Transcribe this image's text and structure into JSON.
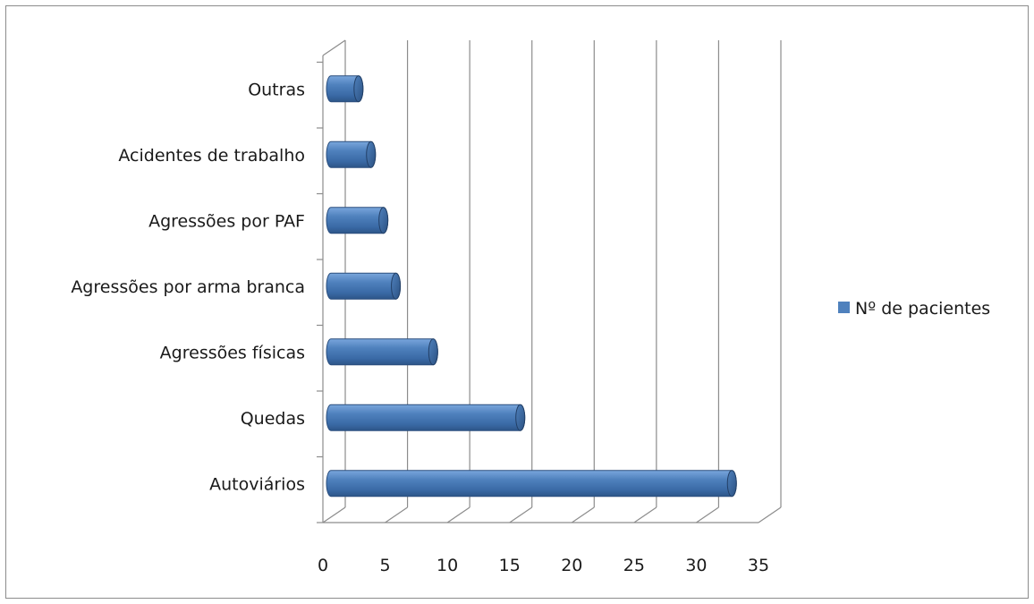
{
  "chart_data": {
    "type": "bar",
    "orientation": "horizontal",
    "style": "3d-cylinder",
    "categories": [
      "Autoviários",
      "Quedas",
      "Agressões físicas",
      "Agressões por arma branca",
      "Agressões por PAF",
      "Acidentes de trabalho",
      "Outras"
    ],
    "series": [
      {
        "name": "Nº de pacientes",
        "values": [
          32,
          15,
          8,
          5,
          4,
          3,
          2
        ],
        "color": "#4f81bd"
      }
    ],
    "xlim": [
      0,
      35
    ],
    "x_ticks": [
      0,
      5,
      10,
      15,
      20,
      25,
      30,
      35
    ],
    "grid": true,
    "legend_position": "right"
  }
}
